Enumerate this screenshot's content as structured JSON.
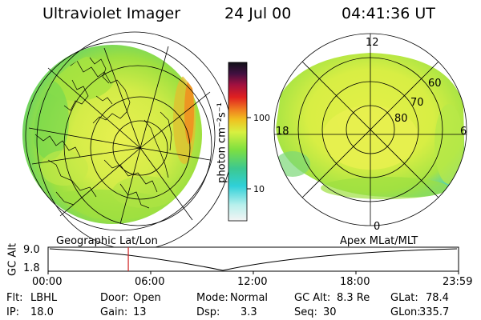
{
  "header": {
    "title": "Ultraviolet Imager",
    "date": "24 Jul 00",
    "time": "04:41:36 UT"
  },
  "colorbar": {
    "unit_label": "photon cm⁻²s⁻¹",
    "ticks": [
      "100",
      "10"
    ],
    "scale": "log",
    "colors": [
      "#f4f4f4",
      "#b8f0ec",
      "#2fd0d8",
      "#3cc890",
      "#7ee040",
      "#d8f040",
      "#f0c020",
      "#f08020",
      "#e02020",
      "#a01040",
      "#401040",
      "#101018"
    ]
  },
  "left_panel": {
    "label": "Geographic Lat/Lon"
  },
  "right_panel": {
    "label": "Apex MLat/MLT",
    "lat_rings": [
      "60",
      "70",
      "80"
    ],
    "mlt_labels": {
      "top": "12",
      "left": "18",
      "right": "6",
      "bottom": "0"
    }
  },
  "altitude_plot": {
    "ylabel": "GC Alt",
    "yticks": [
      "9.0",
      "1.8"
    ],
    "xticks": [
      "00:00",
      "06:00",
      "12:00",
      "18:00",
      "23:59"
    ],
    "marker_color": "#d02020",
    "marker_time_hours": 4.69
  },
  "status": {
    "filter_label": "Flt:",
    "filter_value": "LBHL",
    "ip_label": "IP:",
    "ip_value": "18.0",
    "door_label": "Door:",
    "door_value": "Open",
    "gain_label": "Gain:",
    "gain_value": "13",
    "mode_label": "Mode:",
    "mode_value": "Normal",
    "dsp_label": "Dsp:",
    "dsp_value": "3.3",
    "gcalt_label": "GC Alt:",
    "gcalt_value": "8.3 Re",
    "seq_label": "Seq:",
    "seq_value": "30",
    "glat_label": "GLat:",
    "glat_value": "78.4",
    "glon_label": "GLon:",
    "glon_value": "335.7"
  }
}
